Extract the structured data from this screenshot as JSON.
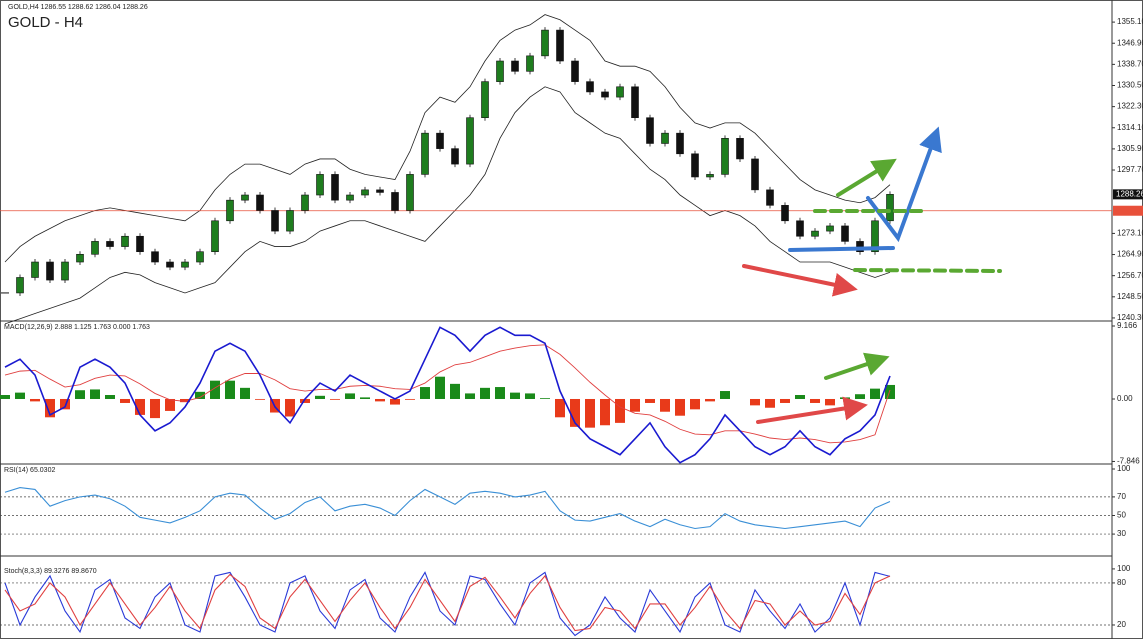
{
  "header": "GOLD,H4 1286.55 1288.62 1286.04 1288.26",
  "chart_data": [
    {
      "type": "candlestick",
      "title": "GOLD - H4",
      "close": [
        1250,
        1256,
        1262,
        1255,
        1262,
        1265,
        1270,
        1268,
        1272,
        1266,
        1262,
        1260,
        1262,
        1266,
        1278,
        1286,
        1288,
        1282,
        1274,
        1282,
        1288,
        1296,
        1286,
        1288,
        1290,
        1289,
        1282,
        1296,
        1312,
        1306,
        1300,
        1318,
        1332,
        1340,
        1336,
        1342,
        1352,
        1340,
        1332,
        1328,
        1326,
        1330,
        1318,
        1308,
        1312,
        1304,
        1295,
        1296,
        1310,
        1302,
        1290,
        1284,
        1278,
        1272,
        1274,
        1276,
        1270,
        1266,
        1278,
        1288.26
      ],
      "bands": {
        "upper": [
          1262,
          1268,
          1272,
          1275,
          1278,
          1280,
          1282,
          1283,
          1282,
          1281,
          1280,
          1279,
          1278,
          1282,
          1290,
          1296,
          1300,
          1300,
          1298,
          1296,
          1300,
          1302,
          1302,
          1298,
          1296,
          1295,
          1294,
          1305,
          1320,
          1326,
          1324,
          1330,
          1340,
          1348,
          1352,
          1354,
          1358,
          1356,
          1352,
          1348,
          1340,
          1338,
          1338,
          1336,
          1330,
          1322,
          1316,
          1314,
          1316,
          1316,
          1312,
          1306,
          1300,
          1294,
          1290,
          1288,
          1286,
          1285,
          1287,
          1292
        ],
        "lower": [
          1238,
          1240,
          1242,
          1244,
          1246,
          1248,
          1252,
          1256,
          1258,
          1257,
          1254,
          1252,
          1250,
          1252,
          1254,
          1260,
          1266,
          1270,
          1268,
          1268,
          1270,
          1274,
          1276,
          1278,
          1278,
          1276,
          1274,
          1272,
          1270,
          1276,
          1282,
          1288,
          1296,
          1310,
          1320,
          1326,
          1330,
          1328,
          1320,
          1316,
          1312,
          1310,
          1304,
          1298,
          1294,
          1288,
          1284,
          1280,
          1282,
          1280,
          1276,
          1270,
          1266,
          1262,
          1262,
          1262,
          1260,
          1258,
          1256,
          1258
        ]
      },
      "up_color": "#1e7d1e",
      "down_color": "#111111",
      "band_color": "#222222",
      "current_price": 1288.26,
      "hline": 1281.9,
      "hline_color": "#e8503a",
      "ylim": [
        1239.5,
        1362.9
      ],
      "yticks": [
        {
          "value": 1355.1,
          "label": "1355.10"
        },
        {
          "value": 1346.9,
          "label": "1346.90"
        },
        {
          "value": 1338.7,
          "label": "1338.70"
        },
        {
          "value": 1330.5,
          "label": "1330.50"
        },
        {
          "value": 1322.3,
          "label": "1322.30"
        },
        {
          "value": 1314.1,
          "label": "1314.10"
        },
        {
          "value": 1305.9,
          "label": "1305.90"
        },
        {
          "value": 1297.7,
          "label": "1297.70"
        },
        {
          "value": 1273.1,
          "label": "1273.10"
        },
        {
          "value": 1264.9,
          "label": "1264.90"
        },
        {
          "value": 1256.7,
          "label": "1256.70"
        },
        {
          "value": 1248.5,
          "label": "1248.50"
        },
        {
          "value": 1240.3,
          "label": "1240.30"
        }
      ]
    },
    {
      "type": "macd",
      "title": "MACD(12,26,9) 2.888 1.125 1.763 0.000 1.763",
      "main": [
        4,
        5,
        3,
        -2,
        -1,
        4,
        5,
        4,
        2,
        -2,
        -4,
        -3,
        -1,
        2,
        6,
        7,
        6,
        3,
        -1,
        -3,
        0,
        2,
        1,
        3,
        2,
        1,
        0,
        1,
        5,
        9,
        8,
        6,
        8,
        9,
        8,
        8,
        7,
        1,
        -3,
        -5,
        -6,
        -7,
        -5,
        -3,
        -6,
        -8,
        -7,
        -5,
        -2,
        -4,
        -6,
        -7,
        -6,
        -4,
        -6,
        -7,
        -5,
        -4,
        -2,
        2.888
      ],
      "signal": [
        3,
        3.5,
        3.6,
        2.5,
        1.5,
        1.8,
        2.6,
        3,
        2.9,
        1.9,
        0.7,
        -0.1,
        -0.3,
        0.2,
        1.4,
        2.5,
        3.2,
        3.2,
        2.4,
        1.3,
        1,
        1.2,
        1.2,
        1.6,
        1.7,
        1.6,
        1.3,
        1.2,
        2,
        3.4,
        4.3,
        4.6,
        5.3,
        6,
        6.4,
        6.7,
        6.8,
        5.6,
        3.9,
        2.1,
        0.5,
        -1,
        -1.8,
        -2,
        -2.8,
        -3.8,
        -4.4,
        -4.5,
        -4,
        -4,
        -4.4,
        -4.9,
        -5.1,
        -4.9,
        -5.1,
        -5.5,
        -5.4,
        -5.1,
        -4.5,
        1.125
      ],
      "histogram": [
        0.5,
        0.8,
        -0.3,
        -2.3,
        -1.3,
        1.1,
        1.2,
        0.5,
        -0.5,
        -2,
        -2.4,
        -1.5,
        -0.4,
        0.9,
        2.3,
        2.3,
        1.4,
        -0.1,
        -1.7,
        -2.2,
        -0.5,
        0.4,
        -0.1,
        0.7,
        0.2,
        -0.3,
        -0.7,
        -0.1,
        1.5,
        2.8,
        1.9,
        0.7,
        1.4,
        1.5,
        0.8,
        0.7,
        0.1,
        -2.3,
        -3.5,
        -3.6,
        -3.3,
        -3,
        -1.6,
        -0.5,
        -1.6,
        -2.1,
        -1.3,
        -0.3,
        1,
        0,
        -0.8,
        -1.1,
        -0.5,
        0.5,
        -0.5,
        -0.8,
        0.2,
        0.6,
        1.3,
        1.763
      ],
      "main_color": "#1a1ad0",
      "signal_color": "#e04040",
      "up_color": "#1a8a1a",
      "down_color": "#e83a1a",
      "ylim": [
        -8.04,
        9.67
      ],
      "yticks": [
        9.166,
        {
          "value": 0,
          "label": "0.00"
        },
        -7.846
      ]
    },
    {
      "type": "line",
      "title": "RSI(14) 65.0302",
      "series": [
        {
          "color": "#3a8fd6",
          "values": [
            75,
            80,
            78,
            60,
            66,
            70,
            72,
            68,
            60,
            48,
            45,
            42,
            48,
            55,
            70,
            74,
            72,
            58,
            46,
            52,
            64,
            70,
            55,
            60,
            62,
            58,
            50,
            66,
            78,
            70,
            62,
            74,
            76,
            74,
            70,
            72,
            76,
            55,
            45,
            44,
            48,
            52,
            44,
            38,
            46,
            40,
            36,
            38,
            52,
            44,
            40,
            38,
            36,
            38,
            40,
            42,
            44,
            38,
            58,
            65.0302
          ]
        }
      ],
      "levels": [
        70,
        50,
        30
      ],
      "ylim": [
        7.5,
        104.3
      ],
      "yticks": [
        100,
        70,
        50,
        30
      ]
    },
    {
      "type": "line",
      "title": "Stoch(8,3,3) 89.3276 89.8670",
      "series": [
        {
          "color": "#2a3ad8",
          "values": [
            80,
            20,
            60,
            90,
            40,
            10,
            70,
            85,
            30,
            15,
            60,
            80,
            20,
            10,
            90,
            95,
            60,
            20,
            10,
            80,
            90,
            40,
            15,
            70,
            85,
            30,
            10,
            60,
            95,
            40,
            20,
            90,
            85,
            50,
            20,
            80,
            95,
            30,
            5,
            20,
            60,
            30,
            10,
            70,
            40,
            10,
            60,
            80,
            20,
            10,
            70,
            40,
            15,
            50,
            10,
            30,
            80,
            20,
            95,
            89.3276
          ]
        },
        {
          "color": "#e04040",
          "values": [
            70,
            40,
            50,
            80,
            60,
            20,
            50,
            80,
            50,
            20,
            45,
            75,
            40,
            15,
            70,
            92,
            75,
            30,
            15,
            60,
            85,
            55,
            25,
            55,
            80,
            45,
            15,
            45,
            85,
            55,
            25,
            75,
            88,
            60,
            30,
            65,
            90,
            45,
            12,
            15,
            45,
            40,
            15,
            50,
            50,
            20,
            45,
            75,
            40,
            15,
            55,
            50,
            20,
            40,
            20,
            25,
            65,
            35,
            80,
            89.867
          ]
        }
      ],
      "levels": [
        80,
        20
      ],
      "ylim": [
        0,
        117
      ],
      "yticks": [
        100,
        80,
        20
      ]
    }
  ]
}
